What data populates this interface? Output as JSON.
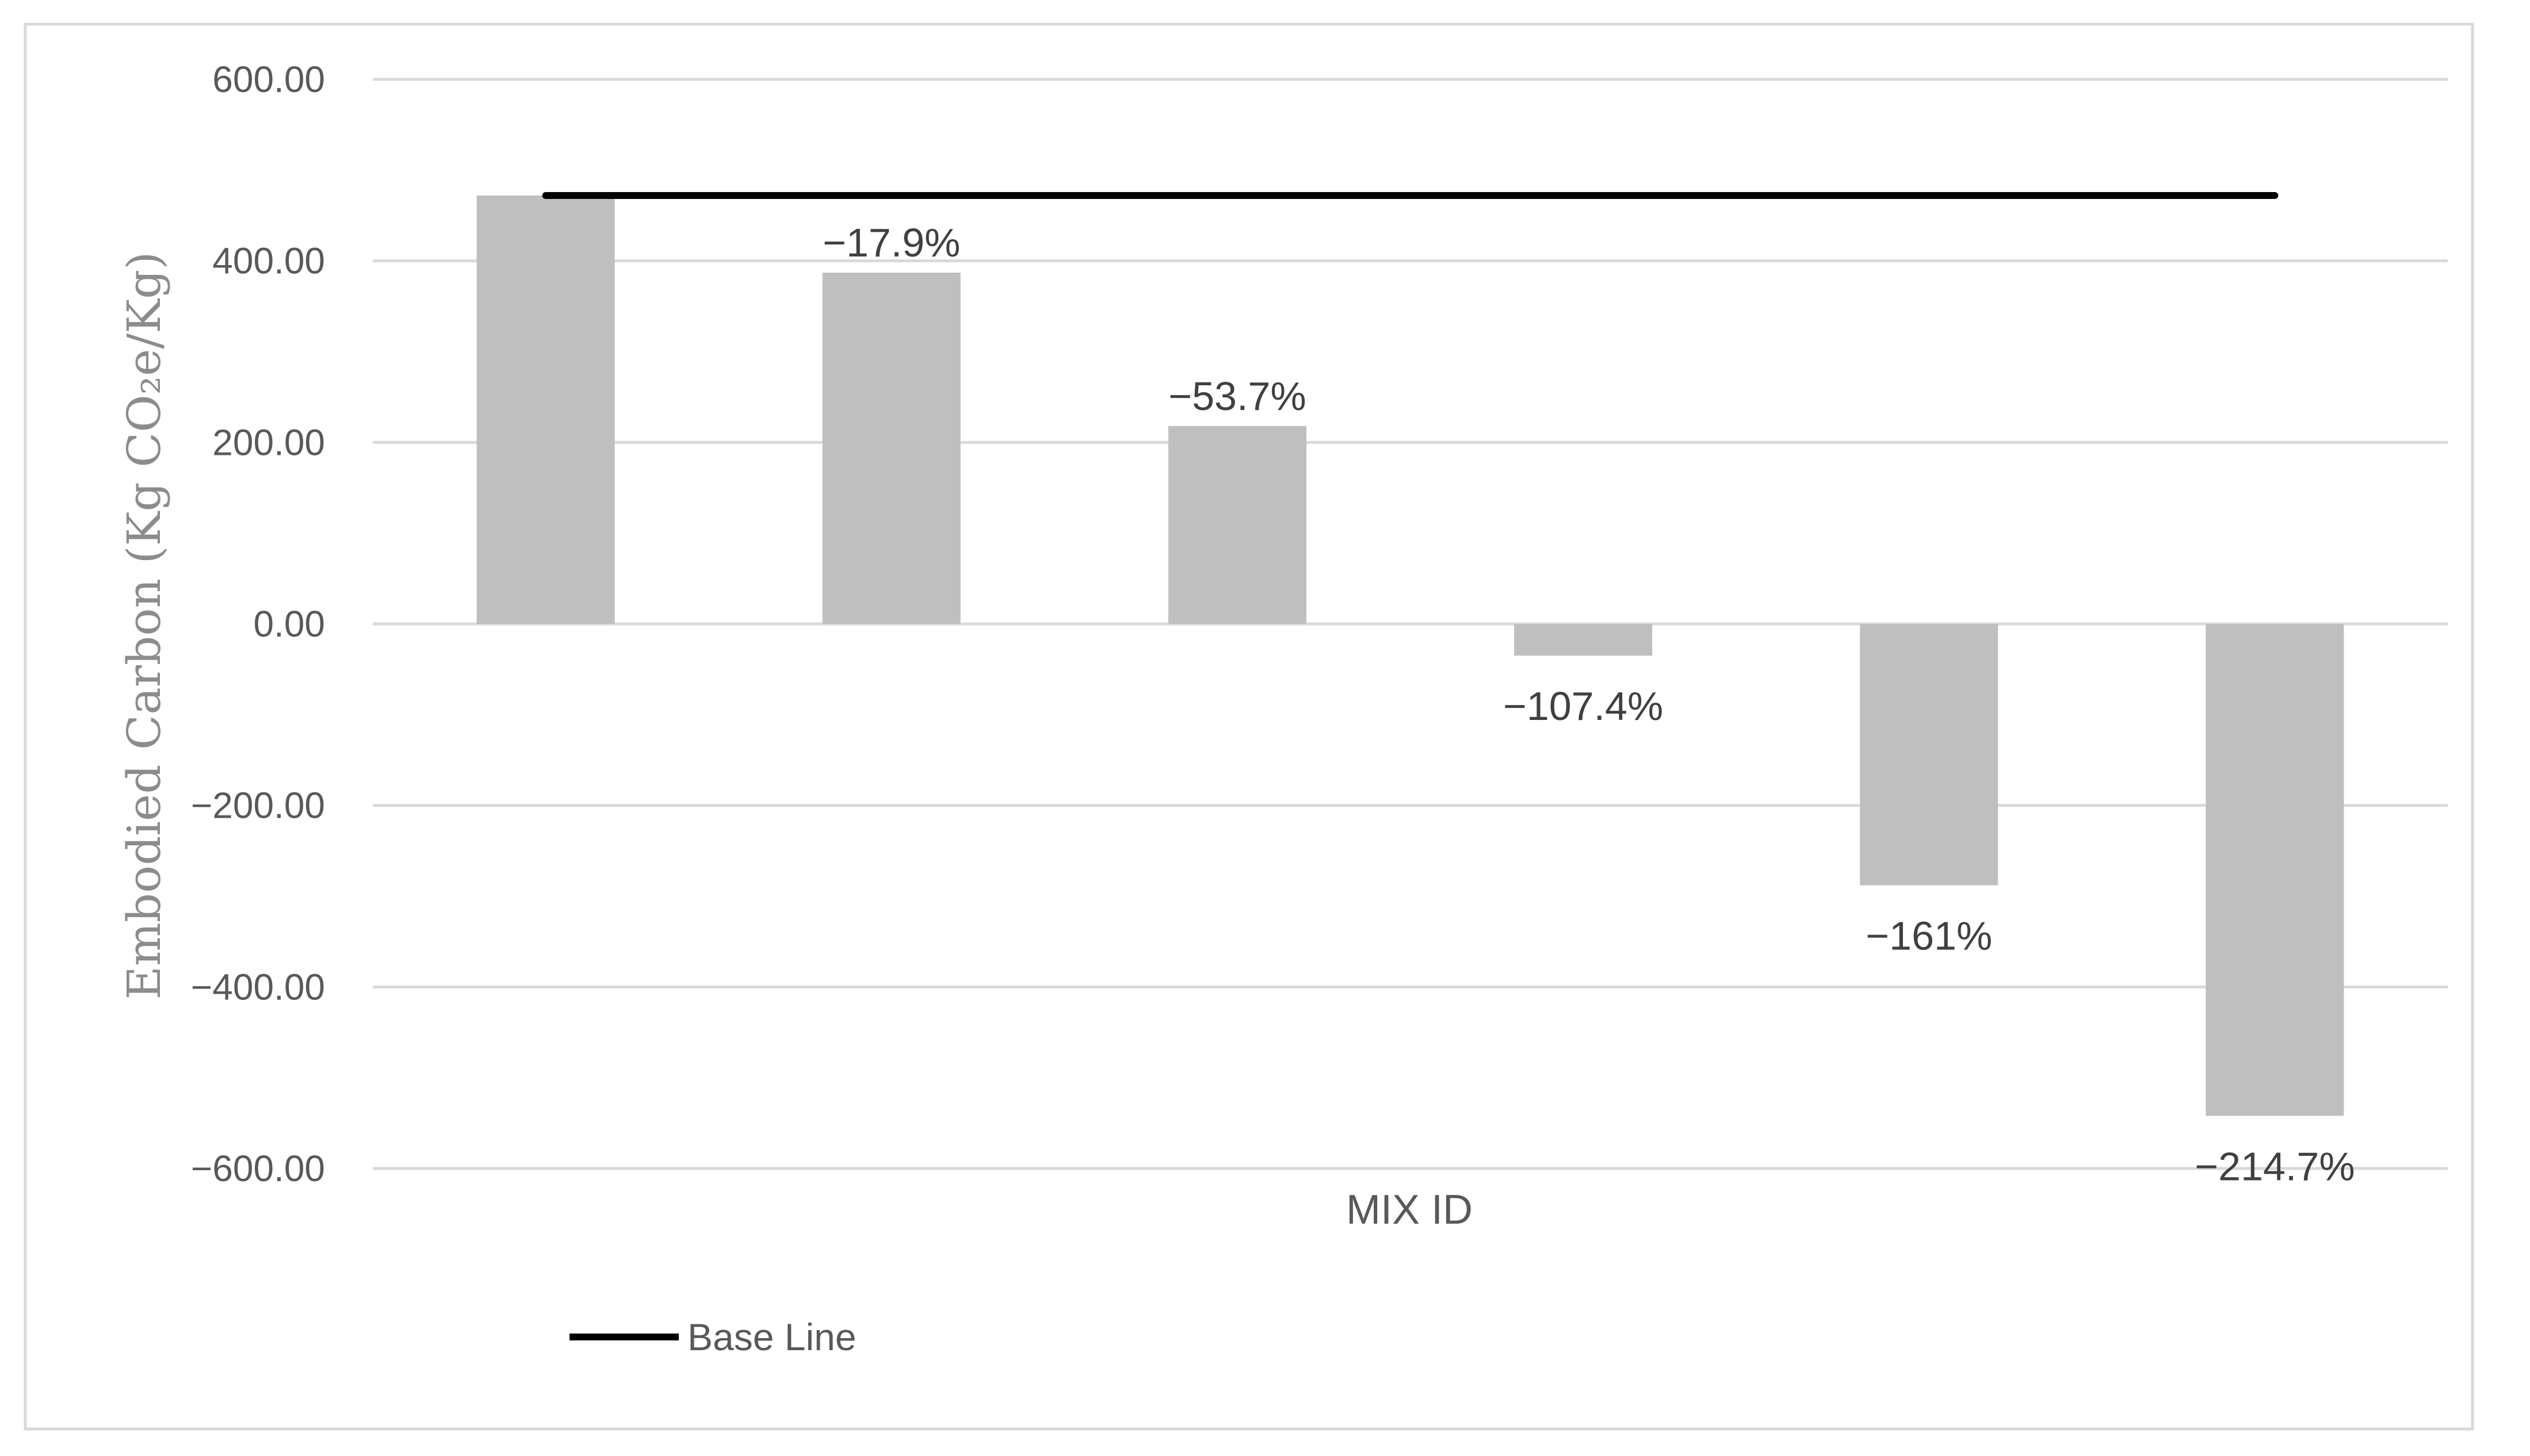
{
  "chart_data": {
    "type": "bar",
    "categories": [
      "",
      "",
      "",
      "",
      "",
      ""
    ],
    "series": [
      {
        "values": [
          472,
          387,
          218,
          -35,
          -288,
          -542
        ],
        "color": "#bfbfbf",
        "data_labels": [
          "",
          "−17.9%",
          "−53.7%",
          "−107.4%",
          "−161%",
          "−214.7%"
        ]
      }
    ],
    "baseline": {
      "name": "Base Line",
      "value": 472,
      "color": "#000000"
    },
    "xlabel": "MIX ID",
    "ylabel": "Embodied Carbon (Kg CO₂e/Kg)",
    "ylim": [
      -600,
      600
    ],
    "y_ticks": [
      {
        "value": 600,
        "label": "600.00"
      },
      {
        "value": 400,
        "label": "400.00"
      },
      {
        "value": 200,
        "label": "200.00"
      },
      {
        "value": 0,
        "label": "0.00"
      },
      {
        "value": -200,
        "label": "−200.00"
      },
      {
        "value": -400,
        "label": "−400.00"
      },
      {
        "value": -600,
        "label": "−600.00"
      }
    ],
    "grid": true,
    "legend": {
      "placement": "bottom-left",
      "entries": [
        "Base Line"
      ]
    }
  }
}
